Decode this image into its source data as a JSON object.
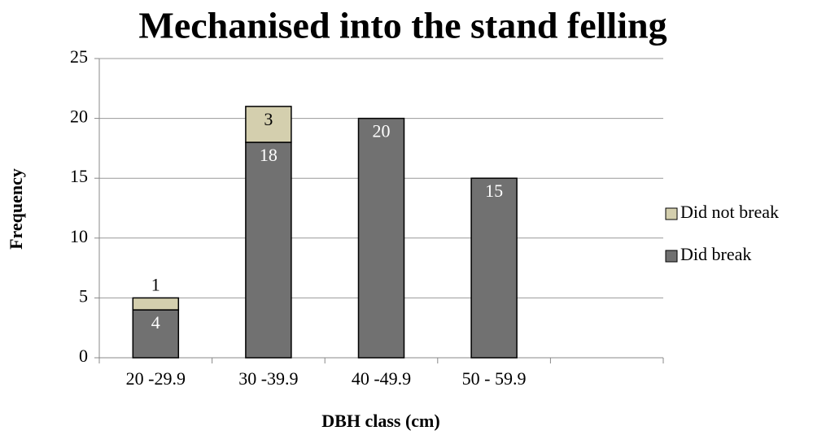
{
  "chart_data": {
    "type": "stacked_bar",
    "title": "Mechanised into the stand felling",
    "x_label": "DBH class (cm)",
    "y_label": "Frequency",
    "categories": [
      "20 -29.9",
      "30 -39.9",
      "40 -49.9",
      "50 - 59.9",
      null
    ],
    "series": [
      {
        "name": "Did break",
        "color": "#717171",
        "values": [
          4,
          18,
          20,
          15,
          null
        ]
      },
      {
        "name": "Did not break",
        "color": "#d4cfae",
        "values": [
          1,
          3,
          null,
          null,
          null
        ]
      }
    ],
    "ylim": [
      0,
      25
    ],
    "yticks": [
      0,
      5,
      10,
      15,
      20,
      25
    ],
    "grid": true,
    "legend": "right"
  }
}
